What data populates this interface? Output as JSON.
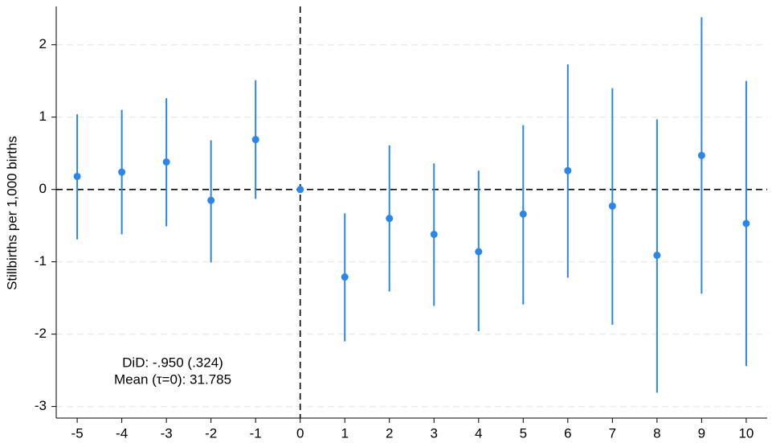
{
  "chart_data": {
    "type": "errorbar",
    "y_label": "Stillbirths per 1,000 births",
    "annotations": [
      "DiD: -.950 (.324)",
      "Mean (τ=0): 31.785"
    ],
    "x": [
      -5,
      -4,
      -3,
      -2,
      -1,
      0,
      1,
      2,
      3,
      4,
      5,
      6,
      7,
      8,
      9,
      10
    ],
    "estimate": [
      0.18,
      0.24,
      0.38,
      -0.15,
      0.69,
      0,
      -1.21,
      -0.4,
      -0.62,
      -0.86,
      -0.34,
      0.26,
      -0.23,
      -0.91,
      0.47,
      -0.47
    ],
    "lower": [
      -0.69,
      -0.62,
      -0.51,
      -1.01,
      -0.13,
      0,
      -2.1,
      -1.41,
      -1.61,
      -1.96,
      -1.59,
      -1.22,
      -1.87,
      -2.81,
      -1.44,
      -2.44
    ],
    "upper": [
      1.04,
      1.1,
      1.26,
      0.68,
      1.51,
      0,
      -0.33,
      0.61,
      0.36,
      0.26,
      0.89,
      1.73,
      1.4,
      0.97,
      2.38,
      1.5
    ],
    "color": "#2a86e8",
    "xlim": [
      -5.47,
      10.47
    ],
    "ylim": [
      -3.16,
      2.53
    ],
    "xticks": [
      -5,
      -4,
      -3,
      -2,
      -1,
      0,
      1,
      2,
      3,
      4,
      5,
      6,
      7,
      8,
      9,
      10
    ],
    "yticks": [
      -3,
      -2,
      -1,
      0,
      1,
      2
    ],
    "grid": true,
    "vline": 0,
    "hline": 0
  }
}
